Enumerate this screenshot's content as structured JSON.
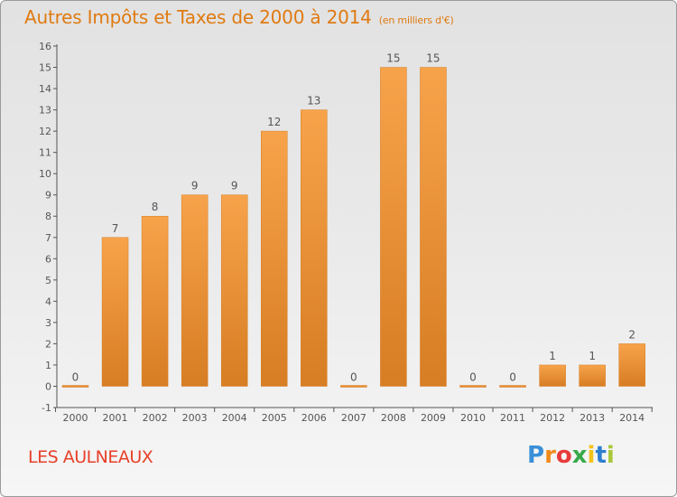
{
  "title": "Autres Impôts et Taxes de 2000 à 2014",
  "title_unit": "(en milliers d'€)",
  "commune": "LES AULNEAUX",
  "logo": {
    "letters": [
      "P",
      "r",
      "o",
      "x",
      "i",
      "t",
      "i"
    ],
    "colors": [
      "#3a8fd8",
      "#f28a1a",
      "#e83a3a",
      "#39a94a",
      "#f2c31a",
      "#2f7fd0",
      "#a8c83a"
    ]
  },
  "colors": {
    "title": "#e07a10",
    "commune": "#e8402a",
    "bar_top": "#f7a34b",
    "bar_bottom": "#d77d23",
    "axis": "#555555"
  },
  "chart_data": {
    "type": "bar",
    "title": "Autres Impôts et Taxes de 2000 à 2014",
    "subtitle": "(en milliers d'€)",
    "xlabel": "",
    "ylabel": "",
    "categories": [
      "2000",
      "2001",
      "2002",
      "2003",
      "2004",
      "2005",
      "2006",
      "2007",
      "2008",
      "2009",
      "2010",
      "2011",
      "2012",
      "2013",
      "2014"
    ],
    "values": [
      0,
      7,
      8,
      9,
      9,
      12,
      13,
      0,
      15,
      15,
      0,
      0,
      1,
      1,
      2
    ],
    "value_labels": [
      "0",
      "7",
      "8",
      "9",
      "9",
      "12",
      "13",
      "0",
      "15",
      "15",
      "0",
      "0",
      "1",
      "1",
      "2"
    ],
    "ylim": [
      -1,
      16
    ],
    "y_ticks": [
      "-1",
      "0",
      "1",
      "2",
      "3",
      "4",
      "5",
      "6",
      "7",
      "8",
      "9",
      "10",
      "11",
      "12",
      "13",
      "14",
      "15",
      "16"
    ],
    "grid": false,
    "legend": "none"
  }
}
